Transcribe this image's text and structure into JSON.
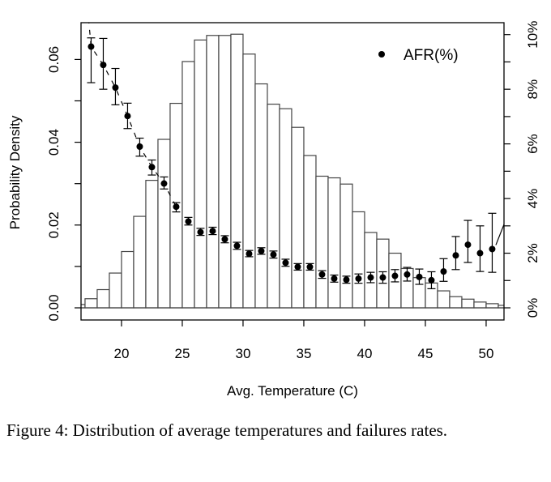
{
  "caption": "Figure 4:  Distribution of average temperatures and failures rates.",
  "chart_data": {
    "type": "bar",
    "title": "",
    "xlabel": "Avg. Temperature (C)",
    "ylabel": "Probability Density",
    "y2label": "AFR(%)",
    "xlim": [
      16.67,
      51.47
    ],
    "ylim": [
      0,
      0.0695
    ],
    "y2lim": [
      0,
      10.4
    ],
    "grid": false,
    "legend": {
      "position": "top-right",
      "entries": [
        "AFR(%)"
      ]
    },
    "x_ticks": [
      "20",
      "25",
      "30",
      "35",
      "40",
      "45",
      "50"
    ],
    "y_ticks": [
      "0.00",
      "0.02",
      "0.04",
      "0.06"
    ],
    "y2_ticks": [
      "0%",
      "2%",
      "4%",
      "6%",
      "8%",
      "10%"
    ],
    "histogram": {
      "bin_start": [
        16,
        17,
        18,
        19,
        20,
        21,
        22,
        23,
        24,
        25,
        26,
        27,
        28,
        29,
        30,
        31,
        32,
        33,
        34,
        35,
        36,
        37,
        38,
        39,
        40,
        41,
        42,
        43,
        44,
        45,
        46,
        47,
        48,
        49,
        50,
        51
      ],
      "density": [
        0.0008,
        0.0022,
        0.0044,
        0.0084,
        0.0136,
        0.0221,
        0.0308,
        0.0407,
        0.0494,
        0.0595,
        0.0647,
        0.0658,
        0.0658,
        0.0661,
        0.0613,
        0.0541,
        0.0492,
        0.0481,
        0.0436,
        0.0368,
        0.0318,
        0.0314,
        0.0299,
        0.0232,
        0.0182,
        0.0166,
        0.0132,
        0.0095,
        0.0073,
        0.006,
        0.0041,
        0.0027,
        0.0021,
        0.0014,
        0.001,
        0.0006
      ]
    },
    "series": [
      {
        "name": "AFR(%)",
        "type": "scatter",
        "x": [
          17.5,
          18.5,
          19.5,
          20.5,
          21.5,
          22.5,
          23.5,
          24.5,
          25.5,
          26.5,
          27.5,
          28.5,
          29.5,
          30.5,
          31.5,
          32.5,
          33.5,
          34.5,
          35.5,
          36.5,
          37.5,
          38.5,
          39.5,
          40.5,
          41.5,
          42.5,
          43.5,
          44.5,
          45.5,
          46.5,
          47.5,
          48.5,
          49.5,
          50.5
        ],
        "values": [
          9.56,
          8.89,
          8.06,
          7.02,
          5.9,
          5.15,
          4.55,
          3.7,
          3.16,
          2.77,
          2.81,
          2.51,
          2.27,
          1.98,
          2.08,
          1.95,
          1.65,
          1.5,
          1.5,
          1.22,
          1.07,
          1.03,
          1.07,
          1.11,
          1.11,
          1.17,
          1.22,
          1.13,
          1.01,
          1.33,
          1.92,
          2.31,
          2.0,
          2.15
        ],
        "err_low": [
          8.24,
          8.0,
          7.43,
          6.56,
          5.55,
          4.86,
          4.35,
          3.51,
          3.03,
          2.65,
          2.68,
          2.38,
          2.14,
          1.87,
          1.96,
          1.82,
          1.52,
          1.38,
          1.38,
          1.08,
          0.94,
          0.9,
          0.9,
          0.92,
          0.9,
          0.95,
          0.98,
          0.86,
          0.7,
          0.97,
          1.4,
          1.66,
          1.33,
          1.3
        ],
        "err_high": [
          9.88,
          9.86,
          8.76,
          7.49,
          6.21,
          5.41,
          4.79,
          3.85,
          3.31,
          2.91,
          2.95,
          2.64,
          2.4,
          2.1,
          2.2,
          2.08,
          1.78,
          1.62,
          1.62,
          1.36,
          1.2,
          1.16,
          1.24,
          1.3,
          1.32,
          1.4,
          1.48,
          1.42,
          1.32,
          1.8,
          2.61,
          3.2,
          3.0,
          3.46
        ]
      }
    ]
  }
}
